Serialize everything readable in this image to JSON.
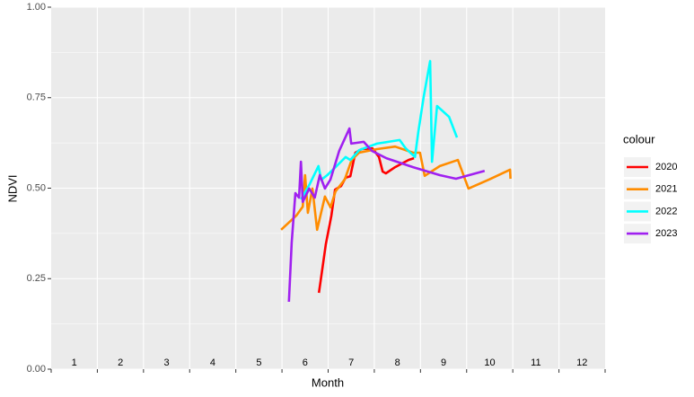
{
  "chart_data": {
    "type": "line",
    "x_label": "Month",
    "y_label": "NDVI",
    "legend_title": "colour",
    "legend": "right",
    "grid": true,
    "xlim": [
      0,
      12
    ],
    "xticks": [
      0,
      1,
      2,
      3,
      4,
      5,
      6,
      7,
      8,
      9,
      10,
      11,
      12
    ],
    "ylim": [
      0,
      1
    ],
    "yticks": [
      {
        "value": 0,
        "label": "0.00"
      },
      {
        "value": 0.25,
        "label": "0.25"
      },
      {
        "value": 0.5,
        "label": "0.50"
      },
      {
        "value": 0.75,
        "label": "0.75"
      },
      {
        "value": 1,
        "label": "1.00"
      }
    ],
    "annotations": [
      {
        "x": 0.5,
        "text": "1"
      },
      {
        "x": 1.5,
        "text": "2"
      },
      {
        "x": 2.5,
        "text": "3"
      },
      {
        "x": 3.5,
        "text": "4"
      },
      {
        "x": 4.5,
        "text": "5"
      },
      {
        "x": 5.5,
        "text": "6"
      },
      {
        "x": 6.5,
        "text": "7"
      },
      {
        "x": 7.5,
        "text": "8"
      },
      {
        "x": 8.5,
        "text": "9"
      },
      {
        "x": 9.5,
        "text": "10"
      },
      {
        "x": 10.5,
        "text": "11"
      },
      {
        "x": 11.5,
        "text": "12"
      }
    ],
    "series": [
      {
        "name": "2020",
        "color": "#ff0000",
        "x": [
          5.8,
          5.83,
          5.95,
          6.07,
          6.15,
          6.28,
          6.38,
          6.48,
          6.59,
          6.73,
          6.96,
          7.1,
          7.18,
          7.25,
          7.45,
          7.74,
          7.86
        ],
        "values": [
          0.211,
          0.238,
          0.345,
          0.424,
          0.496,
          0.506,
          0.529,
          0.533,
          0.598,
          0.608,
          0.61,
          0.586,
          0.546,
          0.541,
          0.558,
          0.578,
          0.583
        ]
      },
      {
        "name": "2021",
        "color": "#ff8c00",
        "x": [
          4.98,
          5.31,
          5.45,
          5.5,
          5.56,
          5.66,
          5.76,
          5.93,
          6.05,
          6.16,
          6.36,
          6.51,
          6.67,
          7.06,
          7.45,
          7.84,
          7.99,
          8.09,
          8.42,
          8.81,
          9.04,
          9.49,
          9.94,
          9.95
        ],
        "values": [
          0.385,
          0.424,
          0.449,
          0.536,
          0.432,
          0.499,
          0.385,
          0.477,
          0.447,
          0.491,
          0.524,
          0.578,
          0.598,
          0.608,
          0.615,
          0.598,
          0.598,
          0.534,
          0.561,
          0.578,
          0.499,
          0.524,
          0.551,
          0.526
        ]
      },
      {
        "name": "2022",
        "color": "#00ffff",
        "x": [
          5.41,
          5.6,
          5.79,
          5.85,
          5.98,
          6.12,
          6.38,
          6.48,
          6.67,
          7.06,
          7.55,
          7.68,
          7.88,
          7.95,
          8.07,
          8.21,
          8.25,
          8.36,
          8.62,
          8.79
        ],
        "values": [
          0.469,
          0.511,
          0.561,
          0.523,
          0.536,
          0.553,
          0.586,
          0.578,
          0.605,
          0.623,
          0.633,
          0.61,
          0.586,
          0.653,
          0.752,
          0.851,
          0.573,
          0.727,
          0.697,
          0.64
        ]
      },
      {
        "name": "2023",
        "color": "#a020f0",
        "x": [
          5.15,
          5.21,
          5.29,
          5.37,
          5.41,
          5.45,
          5.59,
          5.71,
          5.82,
          5.93,
          6.05,
          6.24,
          6.46,
          6.5,
          6.77,
          6.95,
          7.26,
          7.84,
          8.42,
          8.77,
          9.39
        ],
        "values": [
          0.186,
          0.35,
          0.486,
          0.474,
          0.573,
          0.462,
          0.499,
          0.474,
          0.536,
          0.499,
          0.524,
          0.603,
          0.665,
          0.623,
          0.628,
          0.603,
          0.583,
          0.558,
          0.536,
          0.526,
          0.548
        ]
      }
    ]
  }
}
